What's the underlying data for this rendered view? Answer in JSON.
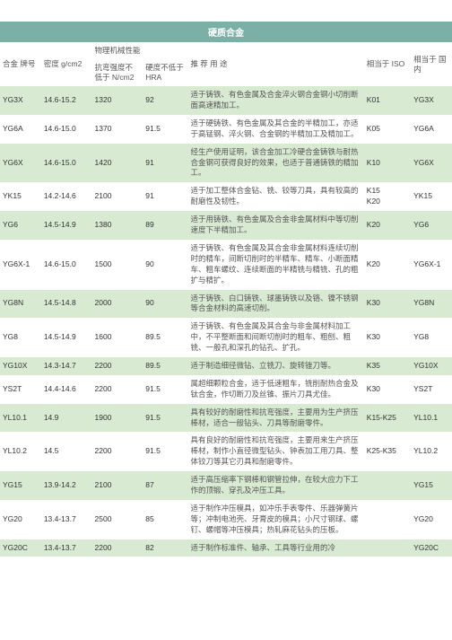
{
  "banner": "硬质合金",
  "headers": {
    "code": "合金\n牌号",
    "density": "密度 g/cm2",
    "mechGroup": "物理机械性能",
    "bend": "抗弯强度不低于 N/cm2",
    "hra": "硬度不低于\nHRA",
    "use": "推 荐 用 途",
    "iso": "相当于\nISO",
    "domestic": "相当于\n国内"
  },
  "rows": [
    {
      "code": "YG3X",
      "density": "14.6-15.2",
      "bend": "1320",
      "hra": "92",
      "use": "适于铸铁、有色金属及合金淬火钢合金钢小切削断面高速精加工。",
      "iso": "K01",
      "dom": "YG3X"
    },
    {
      "code": "YG6A",
      "density": "14.6-15.0",
      "bend": "1370",
      "hra": "91.5",
      "use": "适于硬铸铁、有色金属及其合金的半精加工，亦适于高锰钢、淬火钢、合金钢的半精加工及精加工。",
      "iso": "K05",
      "dom": "YG6A"
    },
    {
      "code": "YG6X",
      "density": "14.6-15.0",
      "bend": "1420",
      "hra": "91",
      "use": "经生产使用证明，该合金加工冷硬合金铸铁与耐热合金钢可获得良好的效果，也适于普通铸铁的精加工。",
      "iso": "K10",
      "dom": "YG6X"
    },
    {
      "code": "YK15",
      "density": "14.2-14.6",
      "bend": "2100",
      "hra": "91",
      "use": "适于加工整体合金钻、铣、铰等刀具，具有较高的耐磨性及韧性。",
      "iso": "K15\nK20",
      "dom": "YK15"
    },
    {
      "code": "YG6",
      "density": "14.5-14.9",
      "bend": "1380",
      "hra": "89",
      "use": "适于用铸铁、有色金属及合金非金属材料中等切削速度下半精加工。",
      "iso": "K20",
      "dom": "YG6"
    },
    {
      "code": "YG6X-1",
      "density": "14.6-15.0",
      "bend": "1500",
      "hra": "90",
      "use": "适于铸铁、有色金属及其合金非金属材料连续切削时的精车，间断切削时的半精车、精车、小断面精车、粗车螺纹、连续断面的半精铣与精铣、孔的粗扩与精扩。",
      "iso": "K20",
      "dom": "YG6X-1"
    },
    {
      "code": "YG8N",
      "density": "14.5-14.8",
      "bend": "2000",
      "hra": "90",
      "use": "适于铸铁、白口铸铁、球墨铸铁以及铬、镍不锈钢等合金材料的高速切削。",
      "iso": "K30",
      "dom": "YG8N"
    },
    {
      "code": "YG8",
      "density": "14.5-14.9",
      "bend": "1600",
      "hra": "89.5",
      "use": "适于铸铁、有色金属及其合金与非金属材料加工中，不平整断面和间断切削时的粗车、粗刨、粗铣、一般孔和深孔的钻孔、扩孔。",
      "iso": "K30",
      "dom": "YG8"
    },
    {
      "code": "YG10X",
      "density": "14.3-14.7",
      "bend": "2200",
      "hra": "89.5",
      "use": "适于制造细径微钻、立铣刀、旋转锉刀等。",
      "iso": "K35",
      "dom": "YG10X"
    },
    {
      "code": "YS2T",
      "density": "14.4-14.6",
      "bend": "2200",
      "hra": "91.5",
      "use": "属超细颗粒合金，适于低速粗车，铣削耐热合金及钛合金，作切断刀及丝锥、振片刀具尤佳。",
      "iso": "K30",
      "dom": "YS2T"
    },
    {
      "code": "YL10.1",
      "density": "14.9",
      "bend": "1900",
      "hra": "91.5",
      "use": "具有较好的耐磨性和抗弯强度，主要用为生产挤压棒材，适合一般钻头、刀具等耐磨零件。",
      "iso": "K15-K25",
      "dom": "YL10.1"
    },
    {
      "code": "YL10.2",
      "density": "14.5",
      "bend": "2200",
      "hra": "91.5",
      "use": "具有良好的耐磨性和抗弯强度，主要用来生产挤压棒材，制作小直径微型钻头、钟表加工用刀具、整体铰刀等其它刃具和耐磨零件。",
      "iso": "K25-K35",
      "dom": "YL10.2"
    },
    {
      "code": "YG15",
      "density": "13.9-14.2",
      "bend": "2100",
      "hra": "87",
      "use": "适于高压缩率下钢棒和钢管拉伸，在较大应力下工作的顶锻、穿孔及冲压工具。",
      "iso": "",
      "dom": "YG15"
    },
    {
      "code": "YG20",
      "density": "13.4-13.7",
      "bend": "2500",
      "hra": "85",
      "use": "适于制作冲压模具，如冲乐手表零件、乐器弹簧片等；冲制电池壳、牙膏皮的模具；小尺寸钢球、螺钉、螺帽等冲压模具；热轧麻花钻头的压板。",
      "iso": "",
      "dom": "YG20"
    },
    {
      "code": "YG20C",
      "density": "13.4-13.7",
      "bend": "2200",
      "hra": "82",
      "use": "适于制作标准件、轴承、工具等行业用的冷",
      "iso": "",
      "dom": "YG20C"
    }
  ],
  "colors": {
    "banner_bg": "#7ab0a6",
    "even_bg": "#d9ead3",
    "odd_bg": "#ffffff"
  }
}
